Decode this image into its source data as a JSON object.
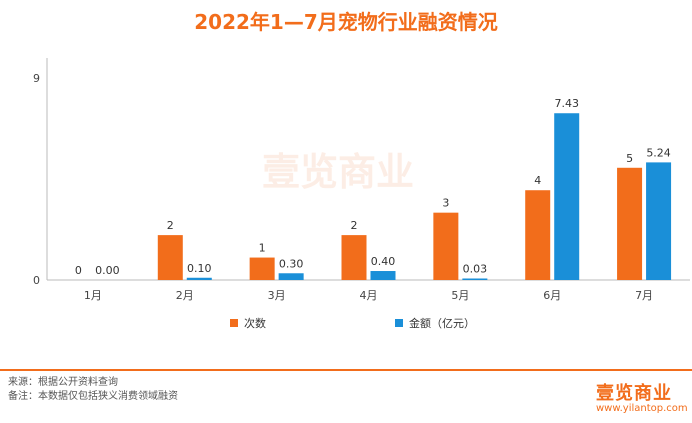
{
  "title": "2022年1—7月宠物行业融资情况",
  "watermark": "壹览商业",
  "colors": {
    "count": "#f26d1b",
    "amount": "#1a8fd8",
    "accent": "#f26d1b"
  },
  "chart_data": {
    "type": "bar",
    "categories": [
      "1月",
      "2月",
      "3月",
      "4月",
      "5月",
      "6月",
      "7月"
    ],
    "ylim": [
      0,
      9
    ],
    "yticks": [
      "0",
      "9"
    ],
    "grid": false,
    "legend": "bottom",
    "series": [
      {
        "name": "次数",
        "values": [
          0,
          2,
          1,
          2,
          3,
          4,
          5
        ],
        "labels": [
          "0",
          "2",
          "1",
          "2",
          "3",
          "4",
          "5"
        ]
      },
      {
        "name": "金额（亿元）",
        "values": [
          0.0,
          0.1,
          0.3,
          0.4,
          0.03,
          7.43,
          5.24
        ],
        "labels": [
          "0.00",
          "0.10",
          "0.30",
          "0.40",
          "0.03",
          "7.43",
          "5.24"
        ]
      }
    ]
  },
  "footer": {
    "source": "来源：根据公开资料查询",
    "note": "备注：本数据仅包括狭义消费领域融资"
  },
  "brand": {
    "logo": "壹览商业",
    "url": "www.yilantop.com"
  }
}
